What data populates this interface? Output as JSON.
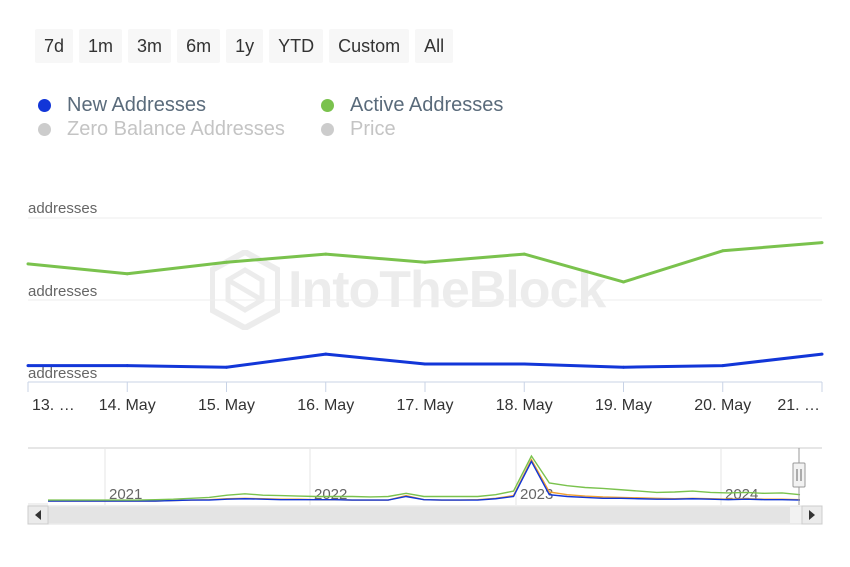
{
  "range_selector": {
    "buttons": [
      "7d",
      "1m",
      "3m",
      "6m",
      "1y",
      "YTD",
      "Custom",
      "All"
    ]
  },
  "legend": [
    {
      "label": "New Addresses",
      "color": "#1236d8",
      "active": true
    },
    {
      "label": "Active Addresses",
      "color": "#7ac24d",
      "active": true
    },
    {
      "label": "Zero Balance Addresses",
      "color": "#cccccc",
      "active": false
    },
    {
      "label": "Price",
      "color": "#cccccc",
      "active": false
    }
  ],
  "watermark": "IntoTheBlock",
  "chart_data": {
    "type": "line",
    "title": "",
    "x": [
      "13. …",
      "14. May",
      "15. May",
      "16. May",
      "17. May",
      "18. May",
      "19. May",
      "20. May",
      "21. …"
    ],
    "y_axis_labels": [
      "addresses",
      "addresses",
      "addresses"
    ],
    "grid": true,
    "legend_position": "top-left",
    "series": [
      {
        "name": "Active Addresses",
        "color": "#7ac24d",
        "values": [
          0.72,
          0.66,
          0.73,
          0.78,
          0.73,
          0.78,
          0.61,
          0.8,
          0.85
        ]
      },
      {
        "name": "New Addresses",
        "color": "#1236d8",
        "values": [
          0.1,
          0.1,
          0.09,
          0.17,
          0.11,
          0.11,
          0.09,
          0.1,
          0.17
        ]
      }
    ],
    "ylim": [
      0,
      1
    ],
    "navigator": {
      "year_labels": [
        "2021",
        "2022",
        "2023",
        "2024"
      ],
      "active": [
        0.02,
        0.02,
        0.02,
        0.02,
        0.02,
        0.02,
        0.03,
        0.04,
        0.06,
        0.08,
        0.13,
        0.16,
        0.13,
        0.12,
        0.11,
        0.1,
        0.1,
        0.1,
        0.09,
        0.1,
        0.17,
        0.1,
        0.1,
        0.1,
        0.1,
        0.14,
        0.22,
        1.0,
        0.4,
        0.34,
        0.3,
        0.28,
        0.25,
        0.22,
        0.19,
        0.2,
        0.22,
        0.19,
        0.18,
        0.19,
        0.17,
        0.18,
        0.14
      ],
      "new": [
        0.0,
        0.0,
        0.0,
        0.0,
        0.0,
        0.0,
        0.0,
        0.01,
        0.02,
        0.02,
        0.04,
        0.05,
        0.04,
        0.03,
        0.03,
        0.03,
        0.03,
        0.02,
        0.02,
        0.02,
        0.1,
        0.03,
        0.02,
        0.02,
        0.02,
        0.05,
        0.1,
        0.88,
        0.14,
        0.1,
        0.08,
        0.06,
        0.06,
        0.05,
        0.04,
        0.04,
        0.05,
        0.04,
        0.03,
        0.04,
        0.03,
        0.03,
        0.02
      ],
      "price": [
        0.0,
        0.0,
        0.0,
        0.0,
        0.0,
        0.0,
        0.0,
        0.01,
        0.02,
        0.03,
        0.05,
        0.06,
        0.05,
        0.04,
        0.04,
        0.03,
        0.03,
        0.02,
        0.02,
        0.02,
        0.12,
        0.03,
        0.02,
        0.02,
        0.03,
        0.06,
        0.12,
        0.92,
        0.2,
        0.14,
        0.11,
        0.09,
        0.08,
        0.07,
        0.06,
        0.05,
        0.06,
        0.05,
        0.04,
        0.05,
        0.04,
        0.04,
        0.03
      ],
      "price_color": "#f0a030"
    }
  }
}
